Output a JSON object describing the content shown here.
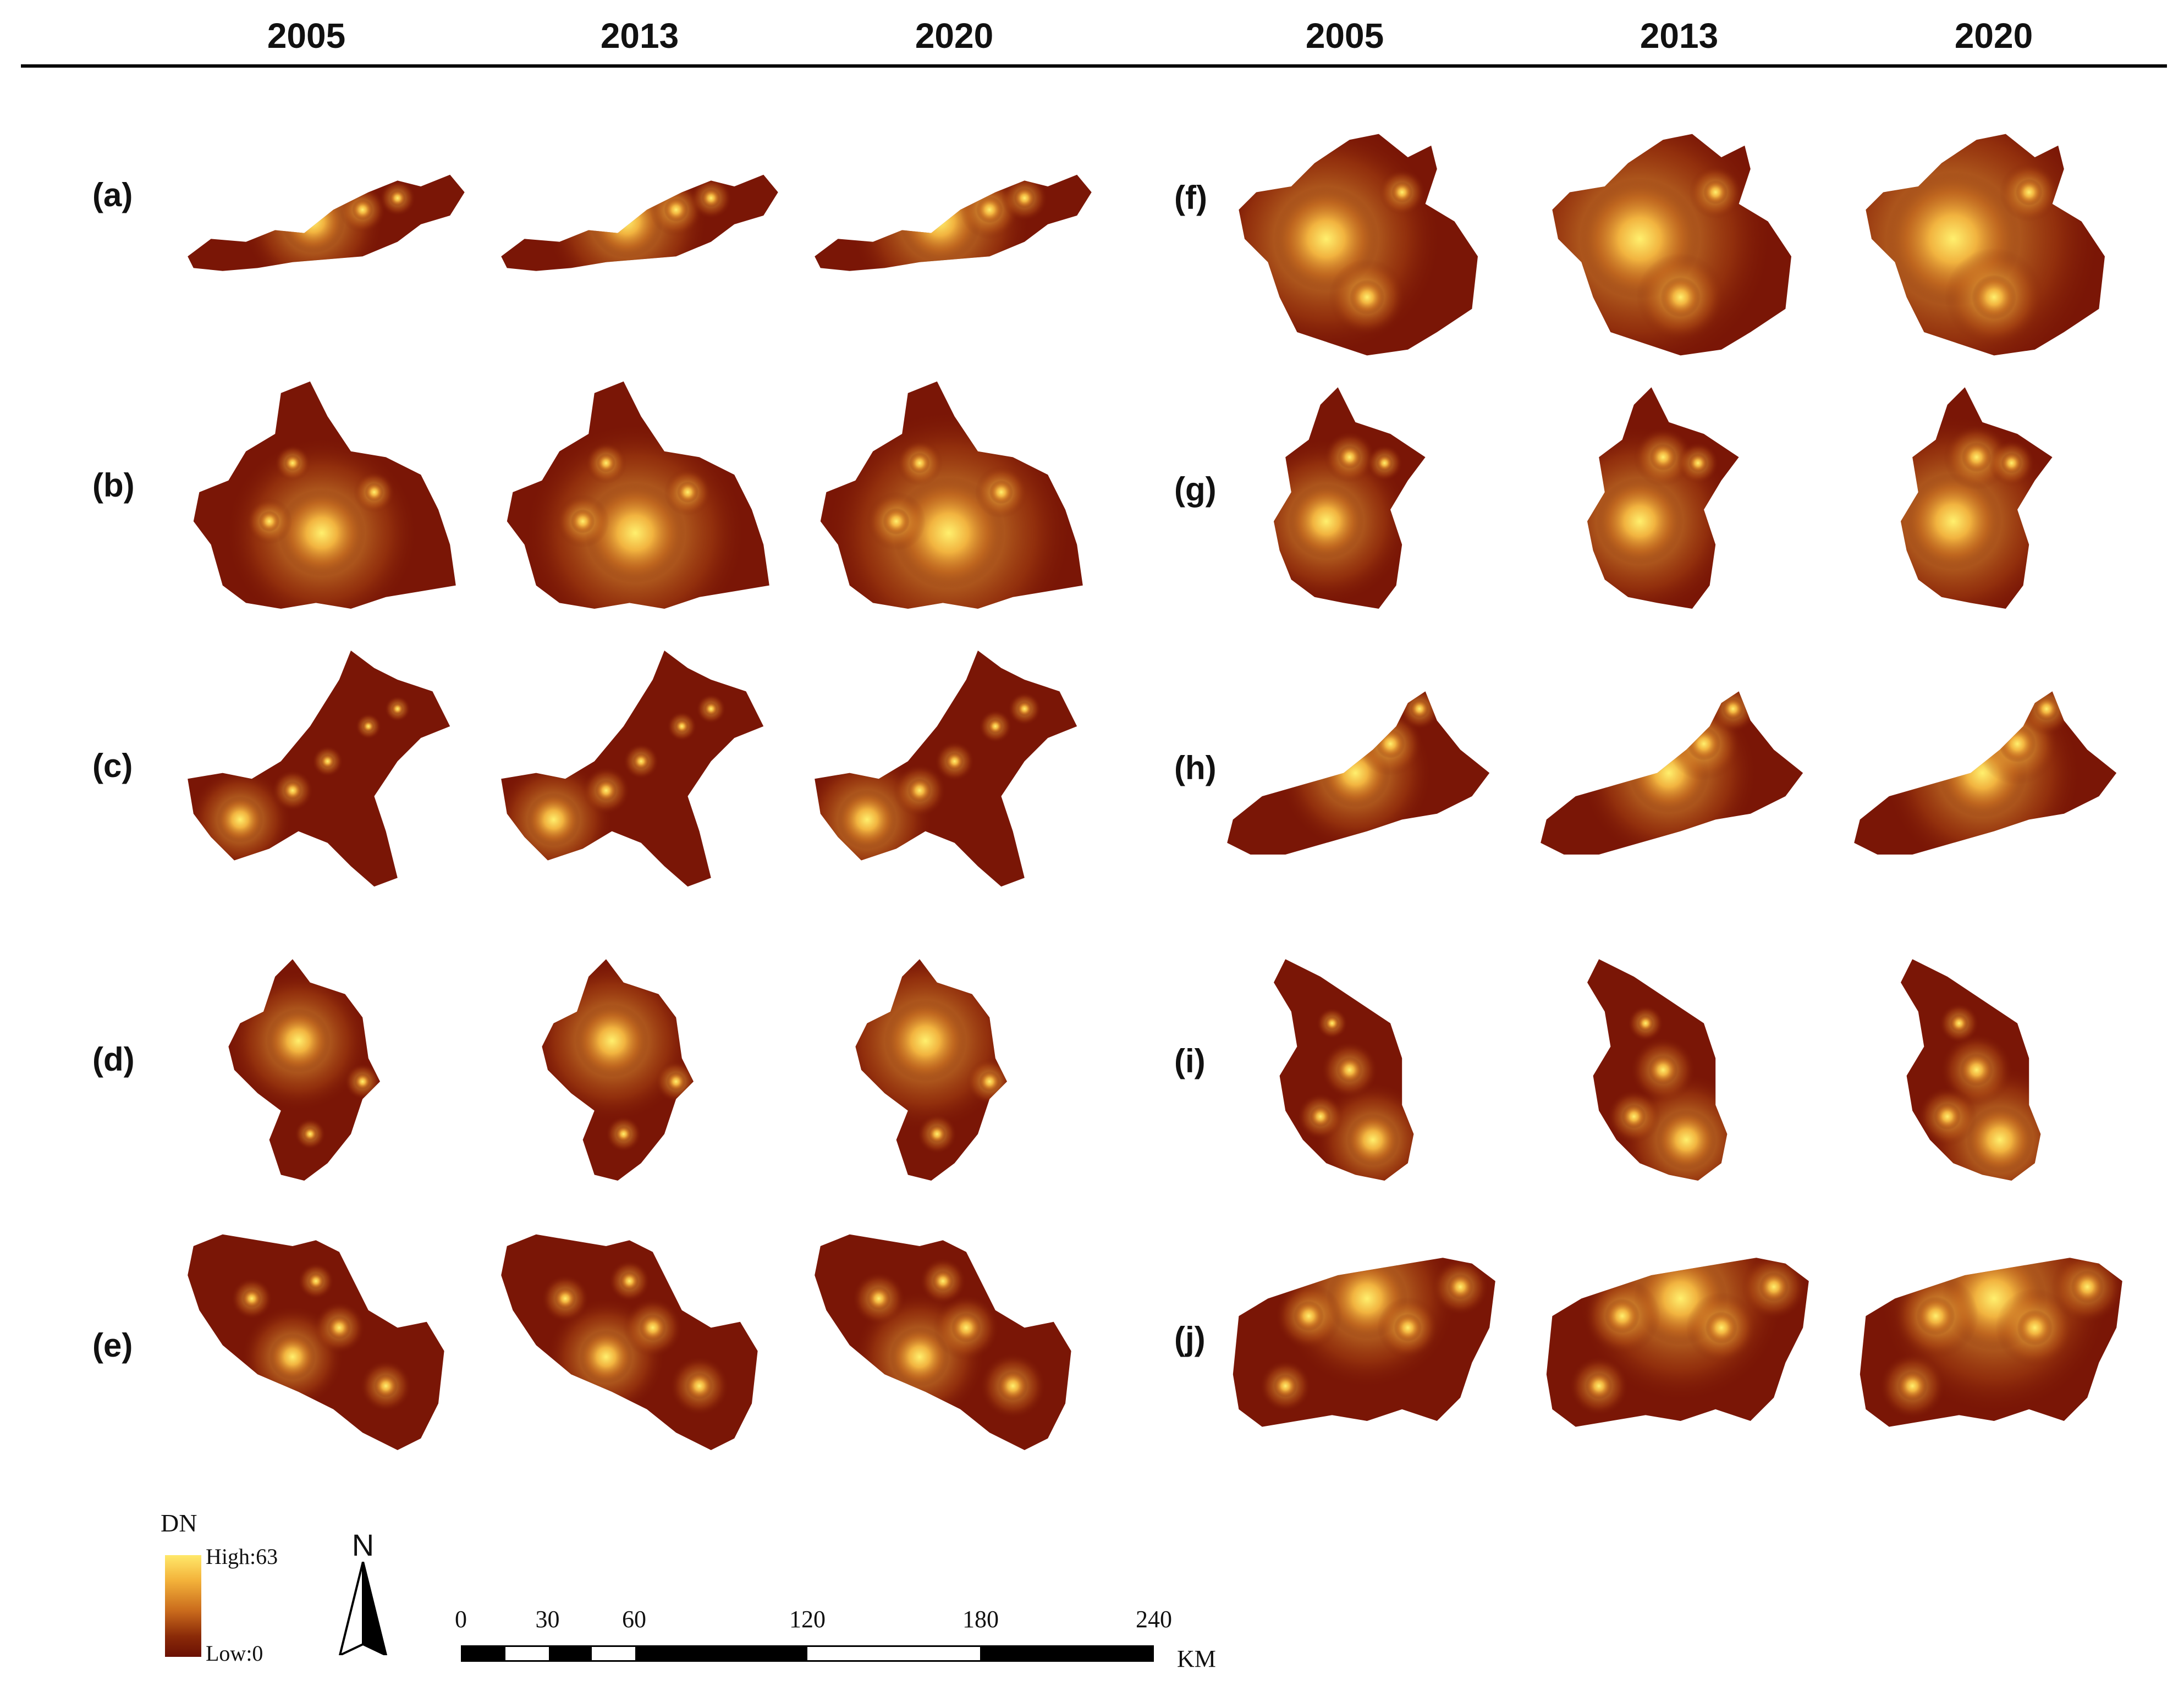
{
  "column_headers": [
    "2005",
    "2013",
    "2020",
    "2005",
    "2013",
    "2020"
  ],
  "row_labels": [
    "(a)",
    "(b)",
    "(c)",
    "(d)",
    "(e)",
    "(f)",
    "(g)",
    "(h)",
    "(i)",
    "(j)"
  ],
  "legend": {
    "title": "DN",
    "high_label": "High:63",
    "low_label": "Low:0",
    "colors": [
      "#ffe86a",
      "#f3b23a",
      "#c96a1c",
      "#8a2a08",
      "#6b1004"
    ]
  },
  "north_arrow": {
    "label": "N",
    "icon": "north-arrow-icon"
  },
  "scale_bar": {
    "ticks": [
      "0",
      "30",
      "60",
      "120",
      "180",
      "240"
    ],
    "tick_values": [
      0,
      30,
      60,
      120,
      180,
      240
    ],
    "unit": "KM"
  },
  "colors": {
    "low": "#6b1004",
    "mid": "#c96a1c",
    "high": "#ffe86a"
  }
}
